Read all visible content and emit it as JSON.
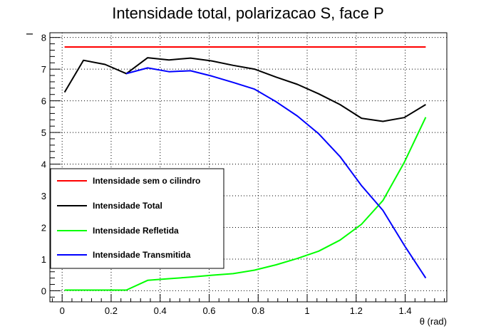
{
  "chart_data": {
    "type": "line",
    "title": "Intensidade total, polarizacao S, face P",
    "xlabel": "θ (rad)",
    "ylabel": "I",
    "xlim": [
      -0.05,
      1.57
    ],
    "ylim": [
      -0.35,
      8.15
    ],
    "xticks": [
      "0",
      "0.2",
      "0.4",
      "0.6",
      "0.8",
      "1",
      "1.2",
      "1.4"
    ],
    "yticks": [
      "0",
      "1",
      "2",
      "3",
      "4",
      "5",
      "6",
      "7",
      "8"
    ],
    "grid": true,
    "legend_position": "bottom-left",
    "x": [
      0.01,
      0.087,
      0.175,
      0.262,
      0.349,
      0.436,
      0.524,
      0.611,
      0.698,
      0.785,
      0.873,
      0.96,
      1.047,
      1.134,
      1.222,
      1.309,
      1.396,
      1.484
    ],
    "series": [
      {
        "name": "Intensidade sem o cilindro",
        "color": "#ff0000",
        "values": [
          7.7,
          7.7,
          7.7,
          7.7,
          7.7,
          7.7,
          7.7,
          7.7,
          7.7,
          7.7,
          7.7,
          7.7,
          7.7,
          7.7,
          7.7,
          7.7,
          7.7,
          7.7
        ]
      },
      {
        "name": "Intensidade Total",
        "color": "#000000",
        "values": [
          6.27,
          7.28,
          7.15,
          6.86,
          7.36,
          7.29,
          7.35,
          7.26,
          7.12,
          7.0,
          6.75,
          6.52,
          6.22,
          5.88,
          5.45,
          5.35,
          5.47,
          5.88
        ]
      },
      {
        "name": "Intensidade Refletida",
        "color": "#00ff00",
        "values": [
          0.02,
          0.02,
          0.02,
          0.02,
          0.33,
          0.38,
          0.43,
          0.49,
          0.54,
          0.65,
          0.82,
          1.02,
          1.25,
          1.6,
          2.1,
          2.85,
          4.05,
          5.48
        ]
      },
      {
        "name": "Intensidade Transmitida",
        "color": "#0000ff",
        "values": [
          null,
          null,
          null,
          6.86,
          7.04,
          6.92,
          6.95,
          6.78,
          6.58,
          6.37,
          5.97,
          5.52,
          4.96,
          4.24,
          3.32,
          2.54,
          1.44,
          0.4
        ]
      }
    ]
  }
}
